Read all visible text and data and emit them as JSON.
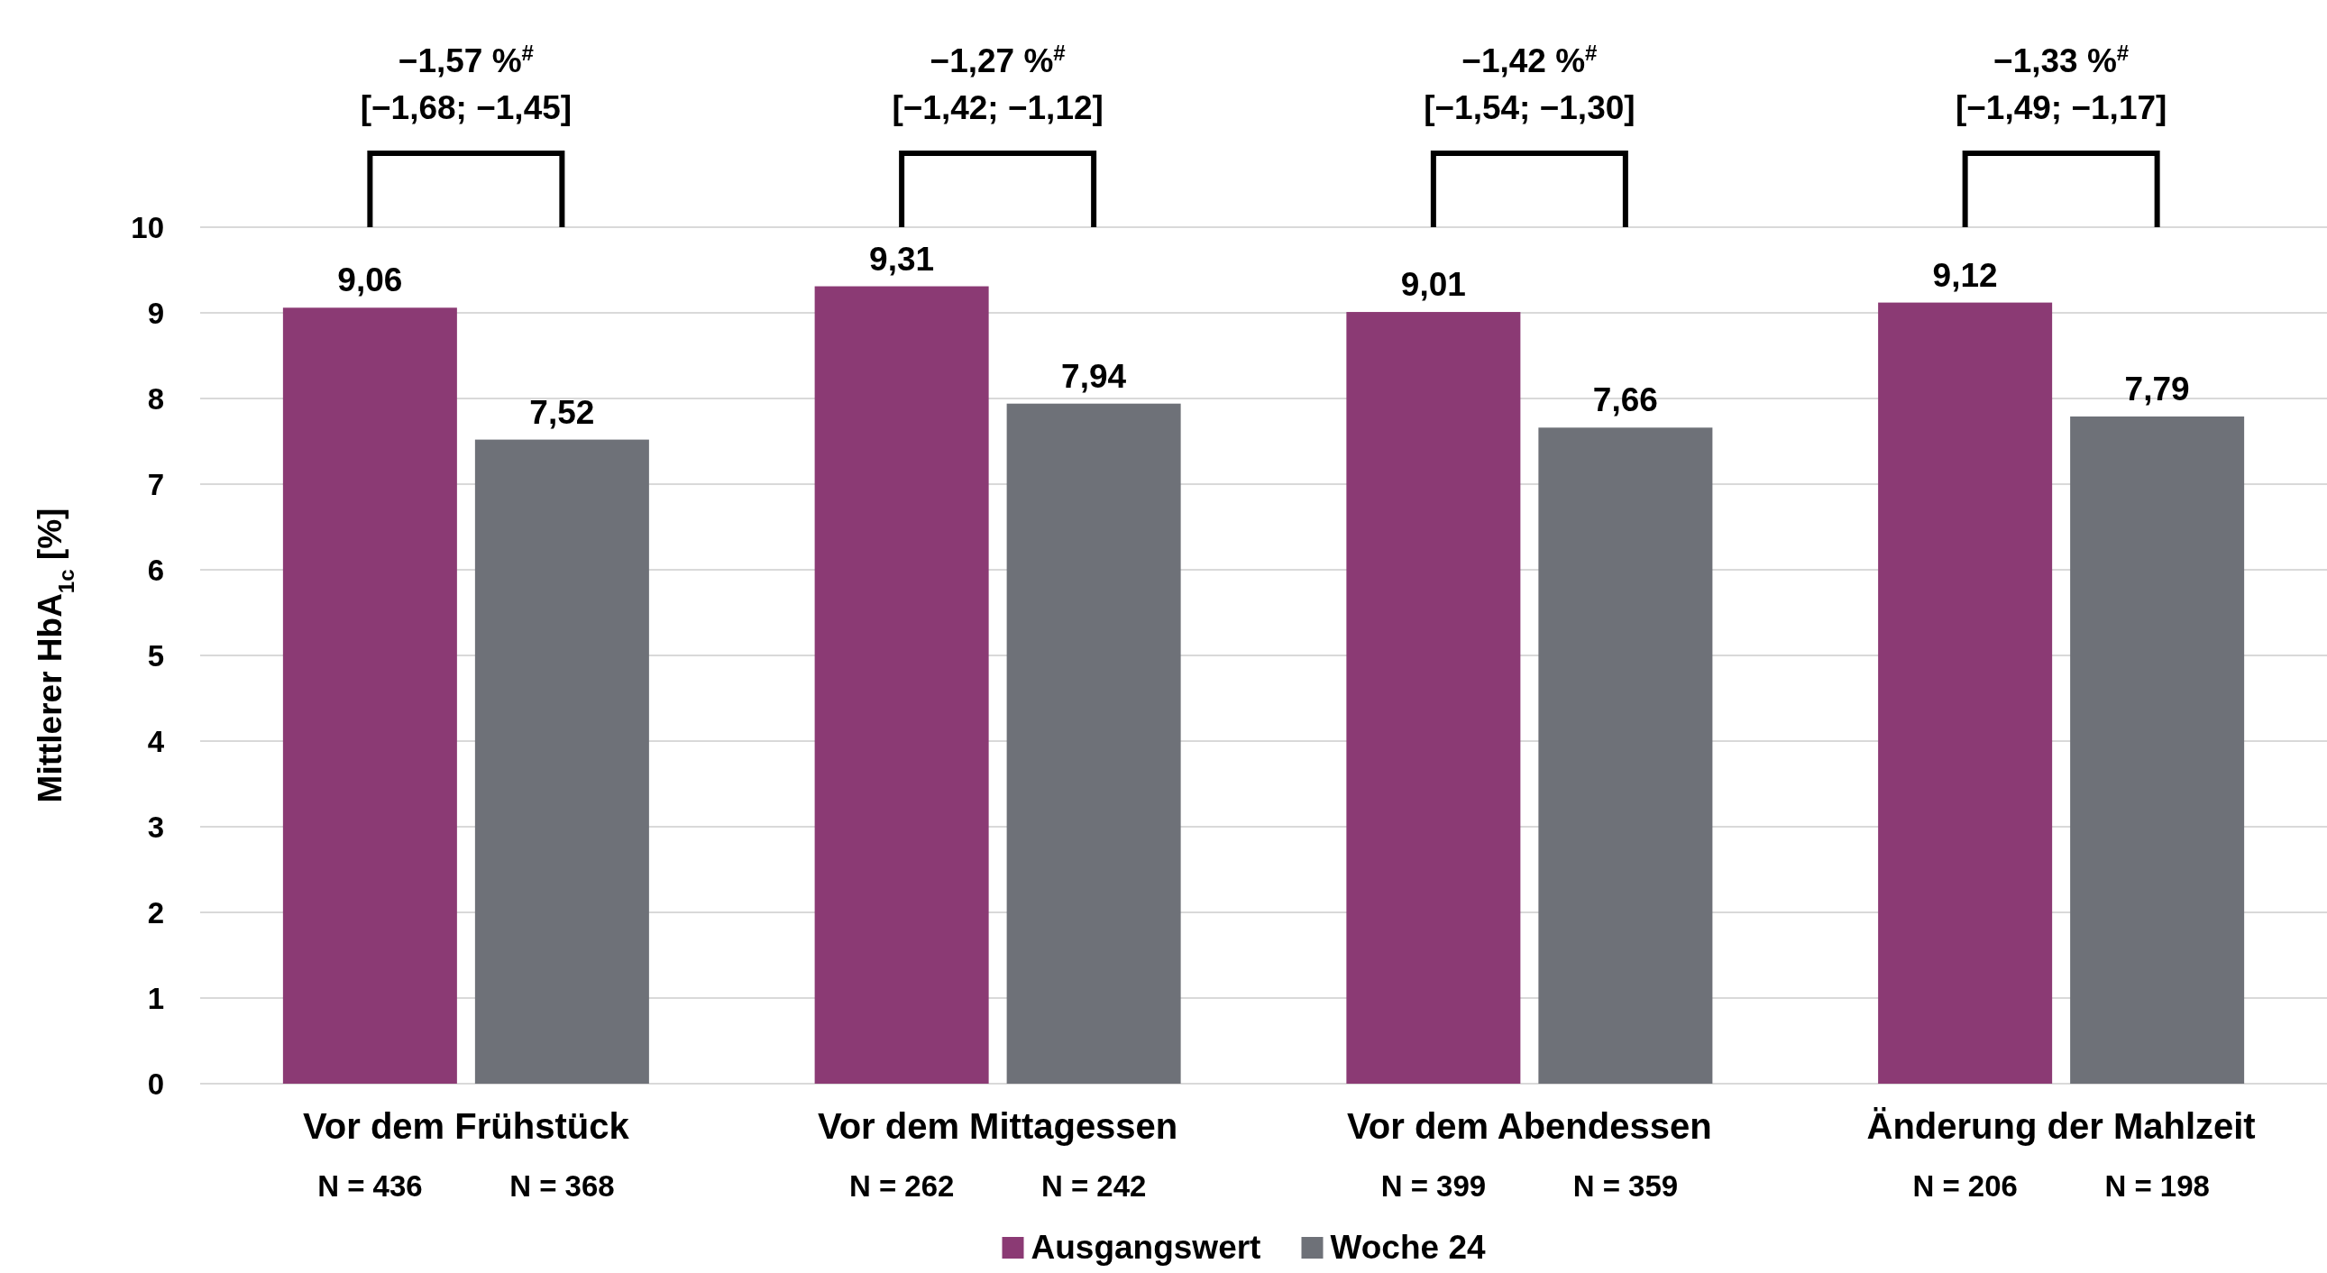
{
  "chart_data": {
    "type": "bar",
    "ylabel": "Mittlerer HbA$_{1c}$ [%]",
    "categories": [
      "Vor dem Frühstück",
      "Vor dem Mittagessen",
      "Vor dem Abendessen",
      "Änderung der Mahlzeit"
    ],
    "series": [
      {
        "name": "Ausgangswert",
        "color": "#8b3a74",
        "values": [
          9.06,
          9.31,
          9.01,
          9.12
        ]
      },
      {
        "name": "Woche 24",
        "color": "#6e7178",
        "values": [
          7.52,
          7.94,
          7.66,
          7.79
        ]
      }
    ],
    "value_labels": [
      [
        "9,06",
        "9,31",
        "9,01",
        "9,12"
      ],
      [
        "7,52",
        "7,94",
        "7,66",
        "7,79"
      ]
    ],
    "ylim": [
      0,
      10
    ],
    "yticks": [
      0,
      1,
      2,
      3,
      4,
      5,
      6,
      7,
      8,
      9,
      10
    ],
    "grid": "y",
    "legend": "bottom",
    "annotations": [
      "−1,57 %$^{#}$\n[−1,68; −1,45]",
      "N = 436",
      "N = 368",
      "−1,27 %$^{#}$\n[−1,42; −1,12]",
      "N = 262",
      "N = 242",
      "−1,42 %$^{#}$\n[−1,54; −1,30]",
      "N = 399",
      "N = 359",
      "−1,33 %$^{#}$\n[−1,49; −1,17]",
      "N = 206",
      "N = 198"
    ]
  }
}
